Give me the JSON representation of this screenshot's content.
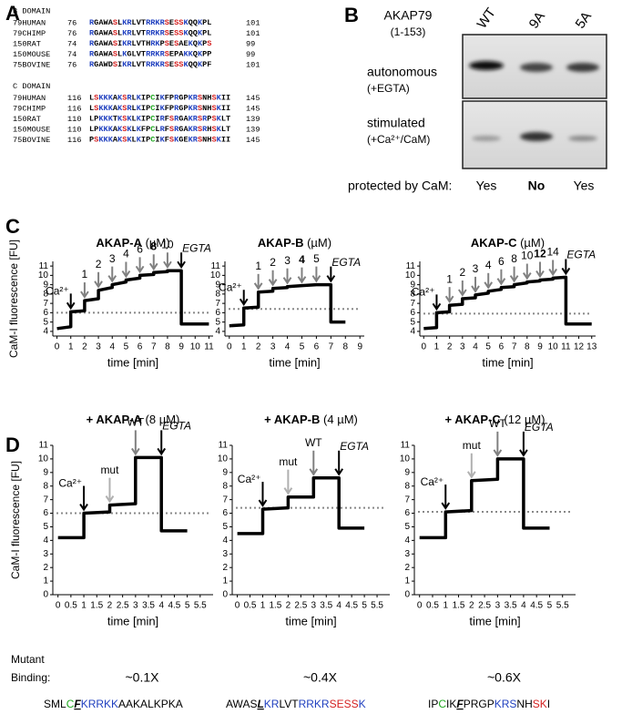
{
  "panels": {
    "a": "A",
    "b": "B",
    "c": "C",
    "d": "D"
  },
  "alignment": {
    "residue_colors": {
      "K": "#1f3fbf",
      "R": "#1f3fbf",
      "S": "#d42020",
      "C": "#1fa81f"
    },
    "blocks": [
      {
        "title": "B DOMAIN",
        "rows": [
          {
            "name": "79HUMAN",
            "start": 76,
            "seq": "RGAWASLKRLVTRRKRSESSKQQKPL",
            "end": 101
          },
          {
            "name": "79CHIMP",
            "start": 76,
            "seq": "RGAWASLKRLVTRRKRSESSKQQKPL",
            "end": 101
          },
          {
            "name": "150RAT",
            "start": 74,
            "seq": "RGAWASIKRLVTHRKPSESAEKQKPS",
            "end": 99
          },
          {
            "name": "150MOUSE",
            "start": 74,
            "seq": "RGAWASLKGLVTRRKRSEPAKKQKPP",
            "end": 99
          },
          {
            "name": "75BOVINE",
            "start": 76,
            "seq": "RGAWDSIKRLVTRRKRSESSKQQKPF",
            "end": 101
          }
        ]
      },
      {
        "title": "C DOMAIN",
        "rows": [
          {
            "name": "79HUMAN",
            "start": 116,
            "seq": "LSKKKAKSRLKIPCIKFPRGPKRSNHSKII",
            "end": 145
          },
          {
            "name": "79CHIMP",
            "start": 116,
            "seq": "LSKKKAKSRLKIPCIKFPRGPKRSNHSKII",
            "end": 145
          },
          {
            "name": "150RAT",
            "start": 110,
            "seq": "LPKKKTKSKLKIPCIRFSRGAKRSRPSKLT",
            "end": 139
          },
          {
            "name": "150MOUSE",
            "start": 110,
            "seq": "LPKKKAKSKLKFPCLRFSRGAKRSRHSKLT",
            "end": 139
          },
          {
            "name": "75BOVINE",
            "start": 116,
            "seq": "PSKKKAKSKLKIPCIKFSKGEKRSNHSKII",
            "end": 145
          }
        ]
      }
    ]
  },
  "gel": {
    "construct": "AKAP79",
    "construct_range": "(1-153)",
    "lanes": [
      "WT",
      "9A",
      "5A"
    ],
    "rows": [
      {
        "label": "autonomous",
        "note": "(+EGTA)"
      },
      {
        "label": "stimulated",
        "note": "(+Ca²⁺/CaM)"
      }
    ],
    "protected_label": "protected by CaM:",
    "protected": [
      "Yes",
      "No",
      "Yes"
    ]
  },
  "chart_data": [
    {
      "type": "line",
      "title": "AKAP-A",
      "title_note": "(µM)",
      "xlabel": "time [min]",
      "ylabel": "CaM-I fluorescence [FU]",
      "xlim": [
        -0.3,
        11.3
      ],
      "xticks": [
        0,
        1,
        2,
        3,
        4,
        5,
        6,
        7,
        8,
        9,
        10,
        11
      ],
      "ylim": [
        3.5,
        11.5
      ],
      "yticks": [
        4,
        5,
        6,
        7,
        8,
        9,
        10,
        11
      ],
      "reference_line": 6.0,
      "series": [
        {
          "color": "#000000",
          "x": [
            0,
            1,
            1,
            2,
            2,
            3,
            3,
            4,
            4,
            5,
            5,
            6,
            6,
            7,
            7,
            8,
            8,
            9,
            9,
            11
          ],
          "values": [
            4.3,
            4.5,
            6.1,
            6.2,
            7.3,
            7.5,
            8.4,
            8.7,
            9.0,
            9.3,
            9.5,
            9.7,
            10.0,
            10.1,
            10.3,
            10.4,
            10.5,
            10.5,
            4.8,
            4.8
          ]
        }
      ],
      "annotations": [
        {
          "text": "Ca²⁺",
          "x": 1,
          "color": "#000000"
        },
        {
          "text": "1",
          "x": 2,
          "color": "#808080"
        },
        {
          "text": "2",
          "x": 3,
          "color": "#808080"
        },
        {
          "text": "3",
          "x": 4,
          "color": "#808080"
        },
        {
          "text": "4",
          "x": 5,
          "color": "#808080"
        },
        {
          "text": "6",
          "x": 6,
          "color": "#808080"
        },
        {
          "text": "8",
          "x": 7,
          "color": "#808080",
          "bold": true
        },
        {
          "text": "10",
          "x": 8,
          "color": "#808080"
        },
        {
          "text": "EGTA",
          "x": 9,
          "color": "#000000"
        }
      ]
    },
    {
      "type": "line",
      "title": "AKAP-B",
      "title_note": "(µM)",
      "xlabel": "time [min]",
      "xlim": [
        -0.3,
        9.3
      ],
      "xticks": [
        0,
        1,
        2,
        3,
        4,
        5,
        6,
        7,
        8,
        9
      ],
      "ylim": [
        3.5,
        11.5
      ],
      "yticks": [
        4,
        5,
        6,
        7,
        8,
        9,
        10,
        11
      ],
      "reference_line": 6.4,
      "series": [
        {
          "color": "#000000",
          "x": [
            0,
            1,
            1,
            2,
            2,
            3,
            3,
            4,
            4,
            5,
            5,
            6,
            6,
            7,
            7,
            8
          ],
          "values": [
            4.6,
            4.7,
            6.5,
            6.6,
            8.2,
            8.3,
            8.6,
            8.7,
            8.8,
            8.9,
            8.9,
            9.0,
            9.0,
            9.0,
            5.0,
            5.0
          ]
        }
      ],
      "annotations": [
        {
          "text": "Ca²⁺",
          "x": 1,
          "color": "#000000"
        },
        {
          "text": "1",
          "x": 2,
          "color": "#808080"
        },
        {
          "text": "2",
          "x": 3,
          "color": "#808080"
        },
        {
          "text": "3",
          "x": 4,
          "color": "#808080"
        },
        {
          "text": "4",
          "x": 5,
          "color": "#808080",
          "bold": true
        },
        {
          "text": "5",
          "x": 6,
          "color": "#808080"
        },
        {
          "text": "EGTA",
          "x": 7,
          "color": "#000000"
        }
      ]
    },
    {
      "type": "line",
      "title": "AKAP-C",
      "title_note": "(µM)",
      "xlabel": "time [min]",
      "xlim": [
        -0.3,
        13.3
      ],
      "xticks": [
        0,
        1,
        2,
        3,
        4,
        5,
        6,
        7,
        8,
        9,
        10,
        11,
        12,
        13
      ],
      "ylim": [
        3.5,
        11.5
      ],
      "yticks": [
        4,
        5,
        6,
        7,
        8,
        9,
        10,
        11
      ],
      "reference_line": 5.9,
      "series": [
        {
          "color": "#000000",
          "x": [
            0,
            1,
            1,
            2,
            2,
            3,
            3,
            4,
            4,
            5,
            5,
            6,
            6,
            7,
            7,
            8,
            8,
            9,
            9,
            10,
            10,
            11,
            11,
            13
          ],
          "values": [
            4.3,
            4.4,
            6.0,
            6.1,
            6.8,
            6.9,
            7.5,
            7.6,
            7.9,
            8.1,
            8.3,
            8.5,
            8.7,
            8.8,
            9.0,
            9.2,
            9.3,
            9.4,
            9.5,
            9.6,
            9.7,
            9.8,
            4.8,
            4.8
          ]
        }
      ],
      "annotations": [
        {
          "text": "Ca²⁺",
          "x": 1,
          "color": "#000000"
        },
        {
          "text": "1",
          "x": 2,
          "color": "#808080"
        },
        {
          "text": "2",
          "x": 3,
          "color": "#808080"
        },
        {
          "text": "3",
          "x": 4,
          "color": "#808080"
        },
        {
          "text": "4",
          "x": 5,
          "color": "#808080"
        },
        {
          "text": "6",
          "x": 6,
          "color": "#808080"
        },
        {
          "text": "8",
          "x": 7,
          "color": "#808080"
        },
        {
          "text": "10",
          "x": 8,
          "color": "#808080"
        },
        {
          "text": "12",
          "x": 9,
          "color": "#808080",
          "bold": true
        },
        {
          "text": "14",
          "x": 10,
          "color": "#808080"
        },
        {
          "text": "EGTA",
          "x": 11,
          "color": "#000000"
        }
      ]
    },
    {
      "type": "line",
      "title": "+ AKAP-A",
      "title_note": "(8 µM)",
      "xlabel": "time [min]",
      "ylabel": "CaM-I fluorescence [FU]",
      "xlim": [
        -0.2,
        6
      ],
      "xticks": [
        0,
        0.5,
        1,
        1.5,
        2,
        2.5,
        3,
        3.5,
        4,
        4.5,
        5,
        5.5
      ],
      "ylim": [
        0,
        11
      ],
      "yticks": [
        0,
        1,
        2,
        3,
        4,
        5,
        6,
        7,
        8,
        9,
        10,
        11
      ],
      "reference_line": 6.0,
      "series": [
        {
          "color": "#000000",
          "x": [
            0,
            1,
            1,
            2,
            2,
            3,
            3,
            4,
            4,
            5
          ],
          "values": [
            4.2,
            4.2,
            6.0,
            6.1,
            6.6,
            6.7,
            10.1,
            10.1,
            4.7,
            4.7
          ]
        }
      ],
      "annotations": [
        {
          "text": "Ca²⁺",
          "x": 1,
          "color": "#000000"
        },
        {
          "text": "mut",
          "x": 2,
          "color": "#b0b0b0"
        },
        {
          "text": "WT",
          "x": 3,
          "color": "#808080"
        },
        {
          "text": "EGTA",
          "x": 4,
          "color": "#000000"
        }
      ],
      "binding": "~0.1X"
    },
    {
      "type": "line",
      "title": "+ AKAP-B",
      "title_note": "(4 µM)",
      "xlabel": "time [min]",
      "xlim": [
        -0.2,
        6
      ],
      "xticks": [
        0,
        0.5,
        1,
        1.5,
        2,
        2.5,
        3,
        3.5,
        4,
        4.5,
        5,
        5.5
      ],
      "ylim": [
        0,
        11
      ],
      "yticks": [
        0,
        1,
        2,
        3,
        4,
        5,
        6,
        7,
        8,
        9,
        10,
        11
      ],
      "reference_line": 6.4,
      "series": [
        {
          "color": "#000000",
          "x": [
            0,
            1,
            1,
            2,
            2,
            3,
            3,
            4,
            4,
            5
          ],
          "values": [
            4.5,
            4.5,
            6.3,
            6.4,
            7.2,
            7.2,
            8.6,
            8.6,
            4.9,
            4.9
          ]
        }
      ],
      "annotations": [
        {
          "text": "Ca²⁺",
          "x": 1,
          "color": "#000000"
        },
        {
          "text": "mut",
          "x": 2,
          "color": "#b0b0b0"
        },
        {
          "text": "WT",
          "x": 3,
          "color": "#808080"
        },
        {
          "text": "EGTA",
          "x": 4,
          "color": "#000000"
        }
      ],
      "binding": "~0.4X"
    },
    {
      "type": "line",
      "title": "+ AKAP-C",
      "title_note": "(12 µM)",
      "xlabel": "time [min]",
      "xlim": [
        -0.2,
        6
      ],
      "xticks": [
        0,
        0.5,
        1,
        1.5,
        2,
        2.5,
        3,
        3.5,
        4,
        4.5,
        5,
        5.5
      ],
      "ylim": [
        0,
        11
      ],
      "yticks": [
        0,
        1,
        2,
        3,
        4,
        5,
        6,
        7,
        8,
        9,
        10,
        11
      ],
      "reference_line": 6.1,
      "series": [
        {
          "color": "#000000",
          "x": [
            0,
            1,
            1,
            2,
            2,
            3,
            3,
            4,
            4,
            5
          ],
          "values": [
            4.2,
            4.2,
            6.1,
            6.2,
            8.4,
            8.5,
            10.0,
            10.0,
            4.9,
            4.9
          ]
        }
      ],
      "annotations": [
        {
          "text": "Ca²⁺",
          "x": 1,
          "color": "#000000"
        },
        {
          "text": "mut",
          "x": 2,
          "color": "#b0b0b0"
        },
        {
          "text": "WT",
          "x": 3,
          "color": "#808080"
        },
        {
          "text": "EGTA",
          "x": 4,
          "color": "#000000"
        }
      ],
      "binding": "~0.6X"
    }
  ],
  "binding_label": [
    "Mutant",
    "Binding:"
  ],
  "sequences": [
    [
      {
        "text": "SML",
        "color": "#000000"
      },
      {
        "text": "C",
        "color": "#1fa81f"
      },
      {
        "text": "F",
        "color": "#000000",
        "mutated": true
      },
      {
        "text": "KRRKK",
        "color": "#1f3fbf"
      },
      {
        "text": "AAKALKPKA",
        "color": "#000000"
      }
    ],
    [
      {
        "text": "AWAS",
        "color": "#000000"
      },
      {
        "text": "L",
        "color": "#000000",
        "mutated": true
      },
      {
        "text": "KR",
        "color": "#1f3fbf"
      },
      {
        "text": "LVT",
        "color": "#000000"
      },
      {
        "text": "RRKR",
        "color": "#1f3fbf"
      },
      {
        "text": "SESS",
        "color": "#d42020"
      },
      {
        "text": "K",
        "color": "#1f3fbf"
      }
    ],
    [
      {
        "text": "IP",
        "color": "#000000"
      },
      {
        "text": "C",
        "color": "#1fa81f"
      },
      {
        "text": "IK",
        "color": "#000000"
      },
      {
        "text": "F",
        "color": "#000000",
        "mutated": true
      },
      {
        "text": "PRGP",
        "color": "#000000"
      },
      {
        "text": "KRS",
        "color": "#1f3fbf"
      },
      {
        "text": "NH",
        "color": "#000000"
      },
      {
        "text": "SK",
        "color": "#d42020"
      },
      {
        "text": "I",
        "color": "#000000"
      }
    ]
  ]
}
